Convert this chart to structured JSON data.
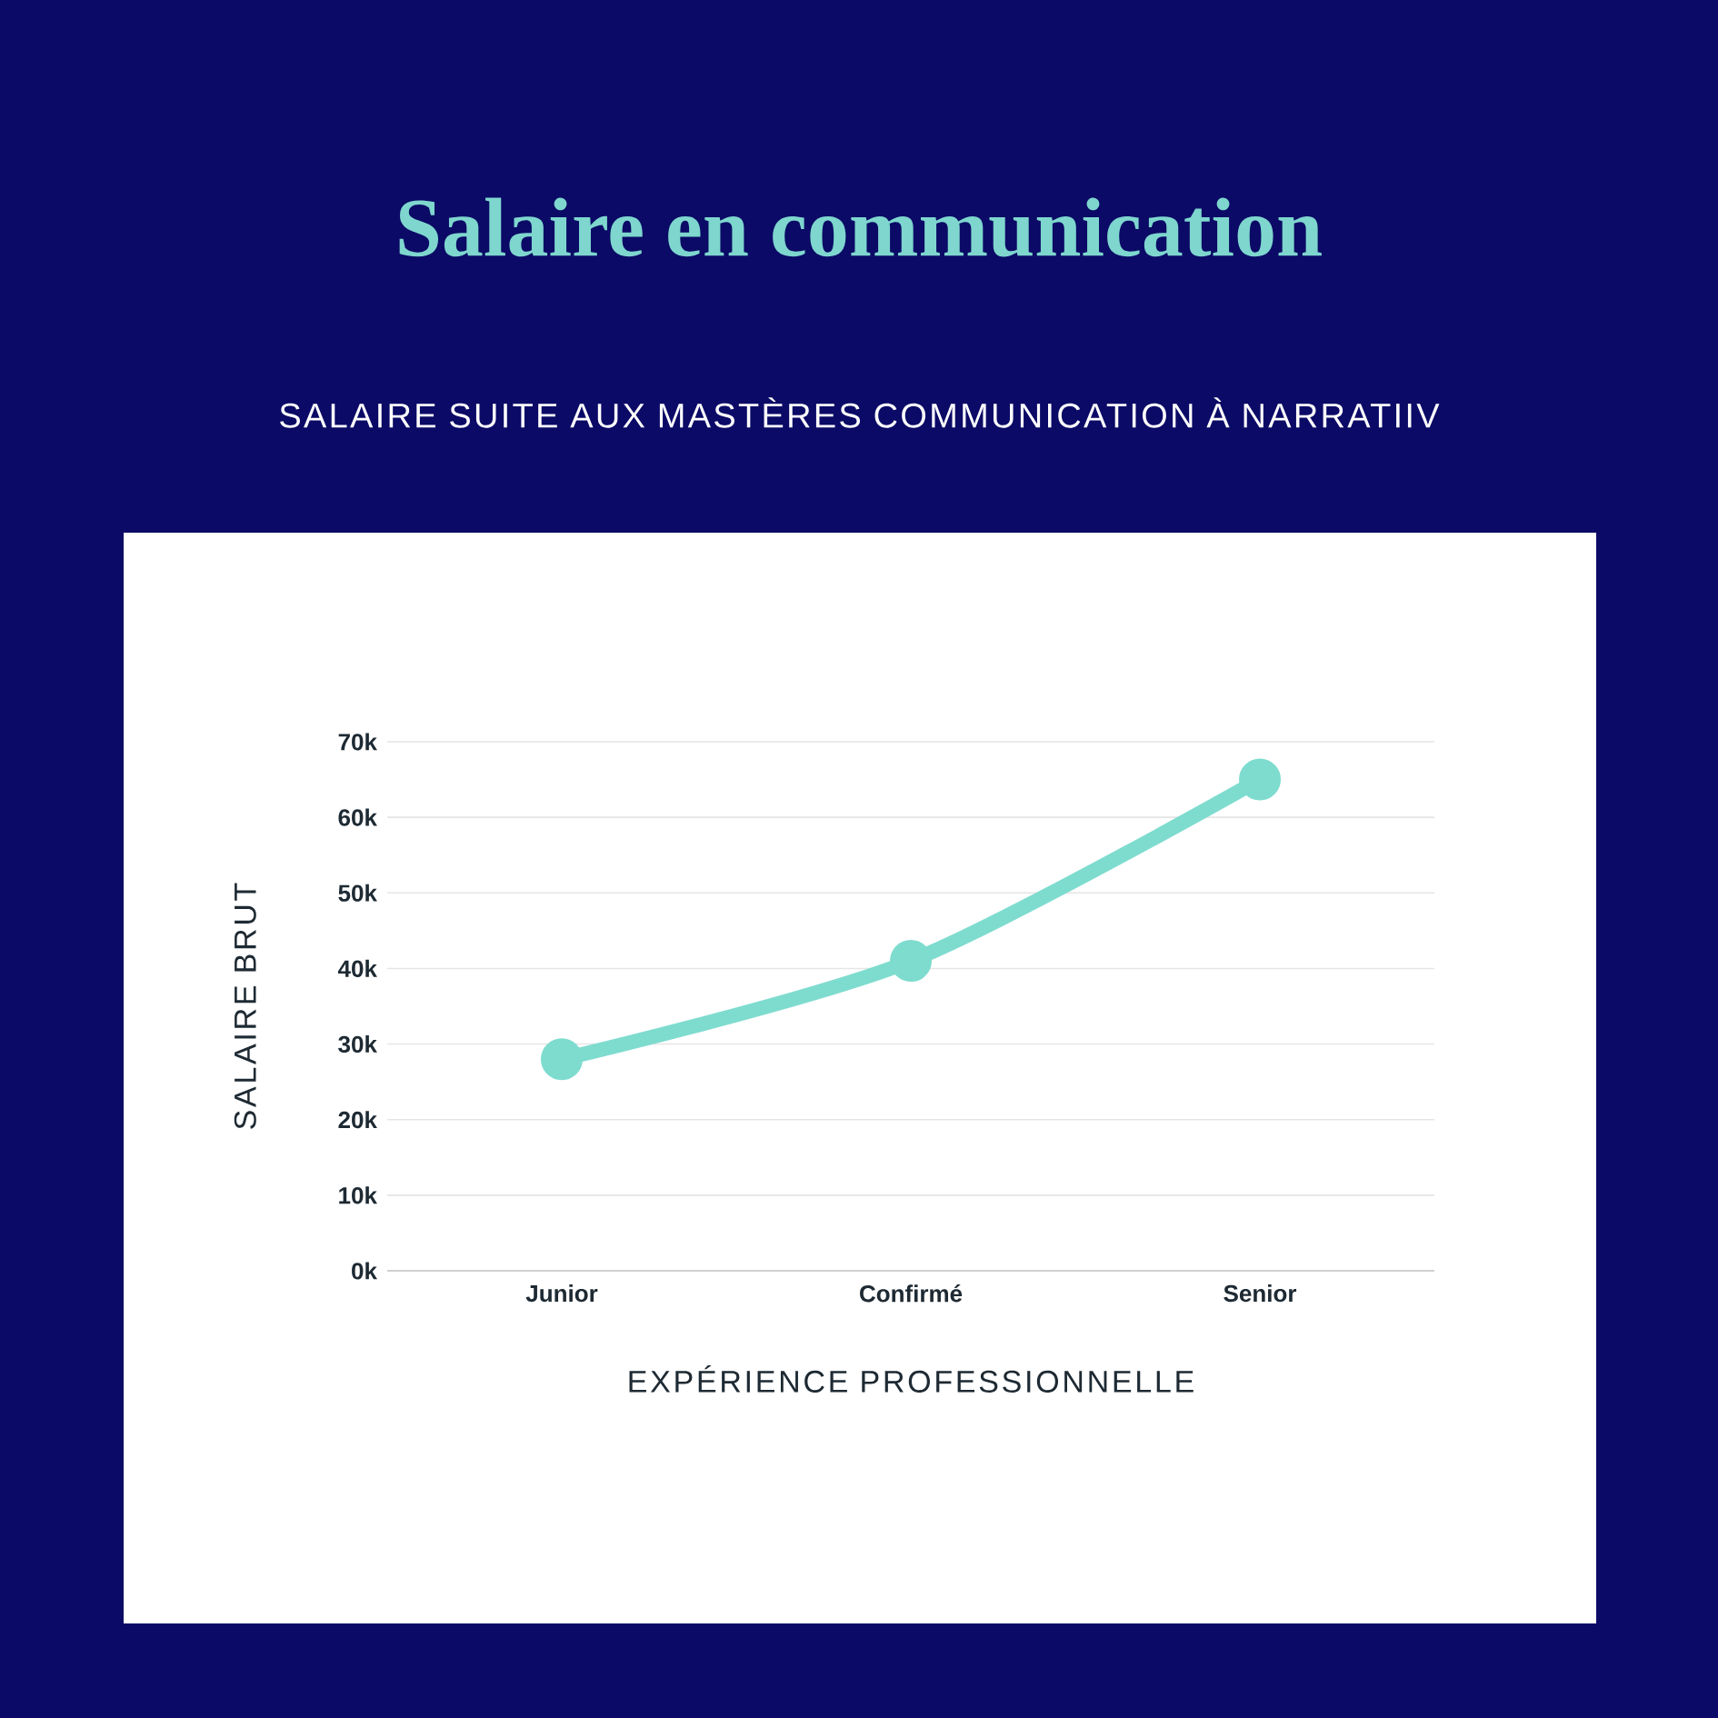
{
  "chart_data": {
    "type": "line",
    "title": "Salaire en communication",
    "subtitle": "SALAIRE SUITE AUX MASTÈRES COMMUNICATION À NARRATIIV",
    "xlabel": "EXPÉRIENCE PROFESSIONNELLE",
    "ylabel": "SALAIRE BRUT",
    "categories": [
      "Junior",
      "Confirmé",
      "Senior"
    ],
    "values": [
      28,
      41,
      65
    ],
    "color": "#7edccf",
    "ylim": [
      0,
      70
    ],
    "yticks": [
      {
        "value": 0,
        "label": "0k"
      },
      {
        "value": 10,
        "label": "10k"
      },
      {
        "value": 20,
        "label": "20k"
      },
      {
        "value": 30,
        "label": "30k"
      },
      {
        "value": 40,
        "label": "40k"
      },
      {
        "value": 50,
        "label": "50k"
      },
      {
        "value": 60,
        "label": "60k"
      },
      {
        "value": 70,
        "label": "70k"
      }
    ],
    "grid": "y",
    "marker": "circle"
  }
}
